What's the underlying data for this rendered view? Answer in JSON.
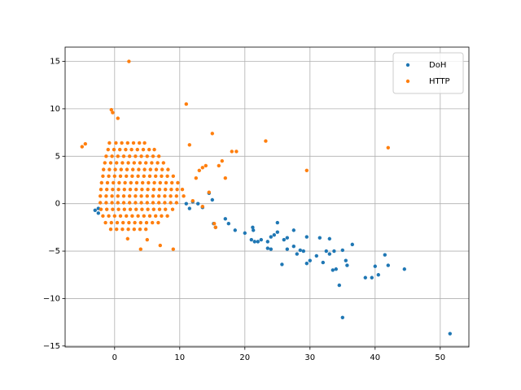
{
  "chart_data": {
    "type": "scatter",
    "xlim": [
      -7.6,
      54.4
    ],
    "ylim": [
      -15.1,
      16.5
    ],
    "xticks": [
      0,
      10,
      20,
      30,
      40,
      50
    ],
    "yticks": [
      {
        "value": -15,
        "label": "−15"
      },
      {
        "value": -10,
        "label": "−10"
      },
      {
        "value": -5,
        "label": "−5"
      },
      0,
      5,
      10,
      15
    ],
    "grid": true,
    "legend": "upper right",
    "series": [
      {
        "name": "DoH",
        "color": "#1f77b4",
        "x": [
          51.5,
          35,
          40.5,
          39.5,
          40,
          42,
          41.5,
          44.5,
          36.5,
          35,
          35.5,
          35.7,
          34.5,
          33.5,
          34,
          33.7,
          33,
          32.5,
          31.5,
          33,
          32,
          31,
          30,
          29.5,
          29,
          29.5,
          28.5,
          28,
          27.5,
          27.5,
          26.5,
          26,
          25.7,
          25,
          25,
          24.5,
          24,
          23.5,
          23.5,
          22.5,
          22,
          21.5,
          21.3,
          21.2,
          21,
          20,
          18.5,
          17.5,
          17,
          15.5,
          15.2,
          15,
          14.5,
          13.5,
          12.8,
          12,
          11.5,
          11,
          -3,
          -2.5,
          -2.5,
          24,
          26.5,
          38.5
        ],
        "values": [
          -13.7,
          -12,
          -7.5,
          -7.8,
          -6.6,
          -6.5,
          -5.4,
          -6.9,
          -4.3,
          -4.9,
          -6,
          -6.5,
          -8.6,
          -7,
          -6.9,
          -5,
          -5.3,
          -5,
          -3.6,
          -3.7,
          -6.2,
          -5.5,
          -6,
          -6.3,
          -5,
          -3.5,
          -4.9,
          -5.3,
          -4.5,
          -2.8,
          -3.6,
          -3.8,
          -6.4,
          -3,
          -2,
          -3.3,
          -3.5,
          -4.7,
          -4,
          -3.8,
          -4,
          -4,
          -2.8,
          -2.5,
          -3.8,
          -3.1,
          -2.8,
          -2.1,
          -1.6,
          -2.5,
          -2.1,
          0.4,
          1.1,
          -0.4,
          0,
          0.2,
          -0.5,
          0,
          -0.7,
          -1,
          -0.5,
          -4.8,
          -4.8,
          -7.8
        ]
      },
      {
        "name": "HTTP",
        "color": "#ff7f0e",
        "x": [
          2.2,
          11,
          -0.5,
          -0.3,
          0.5,
          15,
          -4.5,
          -5,
          11.5,
          18,
          18.7,
          23.2,
          42,
          29.5,
          16.5,
          16,
          14,
          13.5,
          17,
          13,
          14.5,
          13.5,
          12,
          15.5,
          15.3,
          9,
          4,
          7,
          5,
          2,
          12.5,
          -0.8,
          0.2,
          1.1,
          2.0,
          2.9,
          3.8,
          4.6,
          -1.0,
          -0.1,
          0.8,
          1.7,
          2.6,
          3.5,
          4.4,
          5.3,
          6.1,
          -1.3,
          -0.4,
          0.5,
          1.4,
          2.3,
          3.2,
          4.1,
          5.0,
          5.9,
          6.8,
          -1.5,
          -0.6,
          0.3,
          1.2,
          2.1,
          3.0,
          3.9,
          4.8,
          5.7,
          6.6,
          7.5,
          -1.7,
          -0.8,
          0.1,
          1.0,
          1.9,
          2.8,
          3.7,
          4.6,
          5.5,
          6.4,
          7.3,
          8.2,
          -1.8,
          -0.9,
          0.0,
          0.9,
          1.8,
          2.7,
          3.6,
          4.5,
          5.4,
          6.3,
          7.2,
          8.1,
          9.0,
          -2.0,
          -1.1,
          -0.2,
          0.7,
          1.6,
          2.5,
          3.4,
          4.3,
          5.2,
          6.1,
          7.0,
          7.9,
          8.8,
          9.7,
          -2.1,
          -1.2,
          -0.3,
          0.6,
          1.5,
          2.4,
          3.3,
          4.2,
          5.1,
          6.0,
          6.9,
          7.8,
          8.7,
          9.6,
          10.4,
          -2.2,
          -1.3,
          -0.4,
          0.5,
          1.4,
          2.3,
          3.2,
          4.1,
          5.0,
          5.9,
          6.8,
          7.7,
          8.6,
          9.5,
          10.6,
          -2.2,
          -1.3,
          -0.4,
          0.5,
          1.4,
          2.3,
          3.2,
          4.1,
          5.0,
          5.9,
          6.8,
          7.7,
          8.6,
          9.5,
          -2.1,
          -1.2,
          -0.3,
          0.6,
          1.5,
          2.4,
          3.3,
          4.2,
          5.1,
          6.0,
          6.9,
          7.8,
          8.9,
          -1.8,
          -0.9,
          0.0,
          0.9,
          1.8,
          2.7,
          3.6,
          4.5,
          5.4,
          6.3,
          7.2,
          8.1,
          -1.4,
          -0.5,
          0.4,
          1.3,
          2.2,
          3.1,
          4.0,
          4.9,
          5.8,
          6.7,
          -0.6,
          0.3,
          1.2,
          2.1,
          3.0,
          3.9,
          4.8
        ],
        "values": [
          15,
          10.5,
          9.9,
          9.6,
          9,
          7.4,
          6.3,
          6,
          6.2,
          5.5,
          5.5,
          6.6,
          5.9,
          3.5,
          4.5,
          4,
          4,
          3.8,
          2.7,
          3.5,
          1.2,
          -0.3,
          0.3,
          -2.5,
          -2.1,
          -4.8,
          -4.8,
          -4.4,
          -3.8,
          -3.7,
          2.7,
          6.4,
          6.4,
          6.4,
          6.4,
          6.4,
          6.4,
          6.4,
          5.7,
          5.7,
          5.7,
          5.7,
          5.7,
          5.7,
          5.7,
          5.7,
          5.7,
          5.0,
          5.0,
          5.0,
          5.0,
          5.0,
          5.0,
          5.0,
          5.0,
          5.0,
          5.0,
          4.3,
          4.3,
          4.3,
          4.3,
          4.3,
          4.3,
          4.3,
          4.3,
          4.3,
          4.3,
          4.3,
          3.6,
          3.6,
          3.6,
          3.6,
          3.6,
          3.6,
          3.6,
          3.6,
          3.6,
          3.6,
          3.6,
          3.6,
          2.9,
          2.9,
          2.9,
          2.9,
          2.9,
          2.9,
          2.9,
          2.9,
          2.9,
          2.9,
          2.9,
          2.9,
          2.9,
          2.2,
          2.2,
          2.2,
          2.2,
          2.2,
          2.2,
          2.2,
          2.2,
          2.2,
          2.2,
          2.2,
          2.2,
          2.2,
          2.2,
          1.5,
          1.5,
          1.5,
          1.5,
          1.5,
          1.5,
          1.5,
          1.5,
          1.5,
          1.5,
          1.5,
          1.5,
          1.5,
          1.5,
          1.5,
          0.8,
          0.8,
          0.8,
          0.8,
          0.8,
          0.8,
          0.8,
          0.8,
          0.8,
          0.8,
          0.8,
          0.8,
          0.8,
          0.8,
          0.8,
          0.1,
          0.1,
          0.1,
          0.1,
          0.1,
          0.1,
          0.1,
          0.1,
          0.1,
          0.1,
          0.1,
          0.1,
          0.1,
          0.1,
          -0.6,
          -0.6,
          -0.6,
          -0.6,
          -0.6,
          -0.6,
          -0.6,
          -0.6,
          -0.6,
          -0.6,
          -0.6,
          -0.6,
          -0.6,
          -1.3,
          -1.3,
          -1.3,
          -1.3,
          -1.3,
          -1.3,
          -1.3,
          -1.3,
          -1.3,
          -1.3,
          -1.3,
          -1.3,
          -2.0,
          -2.0,
          -2.0,
          -2.0,
          -2.0,
          -2.0,
          -2.0,
          -2.0,
          -2.0,
          -2.0,
          -2.7,
          -2.7,
          -2.7,
          -2.7,
          -2.7,
          -2.7,
          -2.7
        ]
      }
    ]
  }
}
